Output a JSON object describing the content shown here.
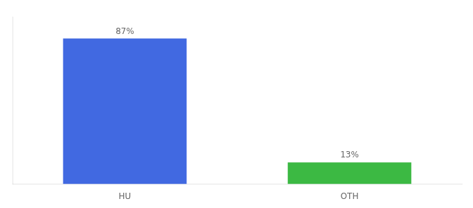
{
  "chart_data": {
    "type": "bar",
    "categories": [
      "HU",
      "OTH"
    ],
    "values": [
      87,
      13
    ],
    "value_labels": [
      "87%",
      "13%"
    ],
    "colors": [
      "#4169E1",
      "#3CB943"
    ],
    "ylim": [
      0,
      100
    ],
    "tick_labels": "x",
    "grid": false,
    "legend": false,
    "data_labels": true
  }
}
